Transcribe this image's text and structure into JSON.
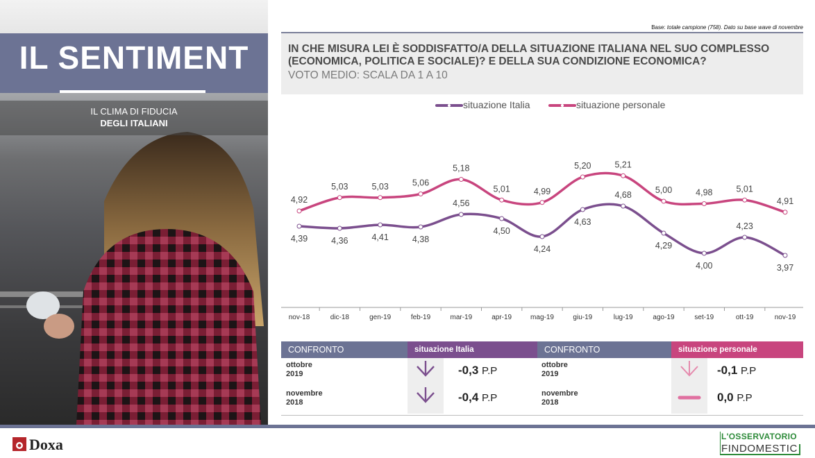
{
  "left": {
    "title": "IL SENTIMENT",
    "subtitle_line1": "IL CLIMA DI FIDUCIA",
    "subtitle_line2": "DEGLI ITALIANI"
  },
  "base_note": {
    "label": "Base:",
    "text": "totale campione (758). Dato su base wave di novembre"
  },
  "question": {
    "line1": "IN CHE MISURA LEI È SODDISFATTO/A DELLA SITUAZIONE ITALIANA NEL SUO COMPLESSO",
    "line2": "(ECONOMICA, POLITICA E SOCIALE)? E DELLA SUA CONDIZIONE ECONOMICA?",
    "line3": "VOTO MEDIO: SCALA DA 1 A 10"
  },
  "chart_data": {
    "type": "line",
    "categories": [
      "nov-18",
      "dic-18",
      "gen-19",
      "feb-19",
      "mar-19",
      "apr-19",
      "mag-19",
      "giu-19",
      "lug-19",
      "ago-19",
      "set-19",
      "ott-19",
      "nov-19"
    ],
    "series": [
      {
        "name": "situazione Italia",
        "color": "#7b4f8e",
        "values": [
          4.39,
          4.36,
          4.41,
          4.38,
          4.56,
          4.5,
          4.24,
          4.63,
          4.68,
          4.29,
          4.0,
          4.23,
          3.97
        ],
        "labels": [
          "4,39",
          "4,36",
          "4,41",
          "4,38",
          "4,56",
          "4,50",
          "4,24",
          "4,63",
          "4,68",
          "4,29",
          "4,00",
          "4,23",
          "3,97"
        ]
      },
      {
        "name": "situazione personale",
        "color": "#c8457e",
        "values": [
          4.92,
          5.03,
          5.03,
          5.06,
          5.18,
          5.01,
          4.99,
          5.2,
          5.21,
          5.0,
          4.98,
          5.01,
          4.91
        ],
        "labels": [
          "4,92",
          "5,03",
          "5,03",
          "5,06",
          "5,18",
          "5,01",
          "4,99",
          "5,20",
          "5,21",
          "5,00",
          "4,98",
          "5,01",
          "4,91"
        ]
      }
    ],
    "legend_position": "top-center",
    "grid": false
  },
  "comparison": {
    "header_confronto": "CONFRONTO",
    "italia": {
      "header": "situazione Italia",
      "color": "#7b4f8e",
      "rows": [
        {
          "period_l1": "ottobre",
          "period_l2": "2019",
          "delta": "-0,3",
          "unit": "P.P",
          "trend": "down"
        },
        {
          "period_l1": "novembre",
          "period_l2": "2018",
          "delta": "-0,4",
          "unit": "P.P",
          "trend": "down"
        }
      ]
    },
    "personale": {
      "header": "situazione personale",
      "color": "#c8457e",
      "rows": [
        {
          "period_l1": "ottobre",
          "period_l2": "2019",
          "delta": "-0,1",
          "unit": "P.P",
          "trend": "down"
        },
        {
          "period_l1": "novembre",
          "period_l2": "2018",
          "delta": "0,0",
          "unit": "P.P",
          "trend": "flat"
        }
      ]
    }
  },
  "footer": {
    "doxa": "Doxa",
    "osservatorio_l1": "L'OSSERVATORIO",
    "osservatorio_l2": "FINDOMESTIC"
  }
}
